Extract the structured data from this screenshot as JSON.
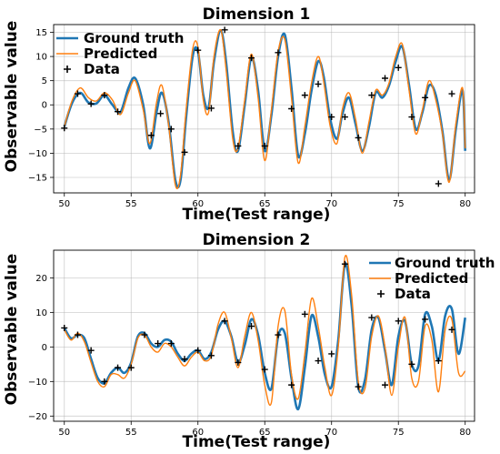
{
  "figure": {
    "ylabel": "Observable value",
    "legend": [
      {
        "label": "Ground truth",
        "color": "#1f77b4",
        "kind": "line"
      },
      {
        "label": "Predicted",
        "color": "#ff7f0e",
        "kind": "line"
      },
      {
        "label": "Data",
        "color": "#000000",
        "kind": "marker"
      }
    ]
  },
  "chart_data": [
    {
      "type": "line",
      "title": "Dimension 1",
      "xlabel": "Time(Test range)",
      "ylabel": "Observable value",
      "xlim": [
        49.2,
        80.7
      ],
      "ylim": [
        -18.2,
        16.6
      ],
      "xticks": [
        50,
        55,
        60,
        65,
        70,
        75,
        80
      ],
      "yticks": [
        -15,
        -10,
        -5,
        0,
        5,
        10,
        15
      ],
      "grid": true,
      "legend_position": "top-left",
      "series": [
        {
          "name": "Ground truth",
          "color": "#1f77b4",
          "x": [
            50,
            50.6,
            51.2,
            51.8,
            52.4,
            53.0,
            53.6,
            54.2,
            54.8,
            55.3,
            55.9,
            56.4,
            56.9,
            57.3,
            57.8,
            58.3,
            58.7,
            59.1,
            59.6,
            60.0,
            60.4,
            60.8,
            61.2,
            61.7,
            62.1,
            62.6,
            63.0,
            63.5,
            64.0,
            64.5,
            65.0,
            65.5,
            66.0,
            66.5,
            67.0,
            67.5,
            68.0,
            68.5,
            69.0,
            69.4,
            69.9,
            70.4,
            70.8,
            71.3,
            71.8,
            72.3,
            72.8,
            73.3,
            73.8,
            74.3,
            74.8,
            75.3,
            75.8,
            76.3,
            76.8,
            77.3,
            77.8,
            78.3,
            78.8,
            79.3,
            79.8,
            80.0
          ],
          "y": [
            -4.5,
            0.5,
            2.5,
            0.5,
            0.3,
            2.0,
            0.0,
            -1.5,
            3.5,
            5.5,
            0.0,
            -9.0,
            -1.5,
            2.5,
            -3.5,
            -15.5,
            -15.5,
            -3.0,
            10.0,
            11.0,
            2.0,
            -0.5,
            9.0,
            15.3,
            9.0,
            -5.5,
            -9.5,
            0.0,
            9.8,
            3.0,
            -9.5,
            -2.0,
            10.0,
            14.5,
            3.5,
            -10.5,
            -6.0,
            3.0,
            9.0,
            6.0,
            -3.0,
            -7.0,
            -2.0,
            1.5,
            -4.0,
            -9.5,
            -4.5,
            2.5,
            1.5,
            4.0,
            9.0,
            12.0,
            4.0,
            -5.0,
            -1.5,
            4.0,
            2.0,
            -5.5,
            -15.5,
            -5.0,
            3.0,
            -9.5
          ]
        },
        {
          "name": "Predicted",
          "color": "#ff7f0e",
          "x": [
            50,
            50.6,
            51.2,
            51.8,
            52.4,
            53.0,
            53.6,
            54.2,
            54.8,
            55.3,
            55.9,
            56.4,
            56.9,
            57.3,
            57.8,
            58.3,
            58.7,
            59.1,
            59.6,
            60.0,
            60.4,
            60.8,
            61.2,
            61.7,
            62.1,
            62.6,
            63.0,
            63.5,
            64.0,
            64.5,
            65.0,
            65.5,
            66.0,
            66.5,
            67.0,
            67.5,
            68.0,
            68.5,
            69.0,
            69.4,
            69.9,
            70.4,
            70.8,
            71.3,
            71.8,
            72.3,
            72.8,
            73.3,
            73.8,
            74.3,
            74.8,
            75.3,
            75.8,
            76.3,
            76.8,
            77.3,
            77.8,
            78.3,
            78.8,
            79.3,
            79.8,
            80.0
          ],
          "y": [
            -4.5,
            1.0,
            3.5,
            1.5,
            0.8,
            2.5,
            1.0,
            -2.0,
            2.5,
            5.0,
            -1.0,
            -8.0,
            0.5,
            4.0,
            -4.0,
            -16.5,
            -14.5,
            -1.5,
            11.5,
            12.0,
            1.0,
            -1.5,
            10.0,
            15.5,
            7.5,
            -7.0,
            -9.0,
            1.0,
            10.5,
            1.5,
            -11.5,
            -1.0,
            11.0,
            13.5,
            1.5,
            -12.0,
            -4.5,
            4.5,
            10.0,
            5.0,
            -4.5,
            -8.0,
            -1.0,
            2.5,
            -3.0,
            -10.0,
            -3.5,
            3.0,
            2.0,
            4.5,
            10.0,
            12.5,
            3.0,
            -6.0,
            -1.0,
            5.0,
            1.0,
            -6.0,
            -16.0,
            -4.0,
            3.5,
            -9.0
          ]
        }
      ],
      "data_points": {
        "name": "Data",
        "x": [
          50,
          51.0,
          52.0,
          53.0,
          54.0,
          56.5,
          57.2,
          58.0,
          59.0,
          60.0,
          61.0,
          62.0,
          63.0,
          64.0,
          65.0,
          66.0,
          67.0,
          68.0,
          69.0,
          70.0,
          71.0,
          72.0,
          73.0,
          74.0,
          75.0,
          76.0,
          77.0,
          78.0,
          79.0
        ],
        "y": [
          -4.8,
          2.3,
          0.2,
          2.0,
          -1.4,
          -6.3,
          -1.8,
          -5.0,
          -9.8,
          11.3,
          -0.7,
          15.5,
          -8.5,
          9.7,
          -8.5,
          10.8,
          -0.8,
          2.0,
          4.3,
          -2.5,
          -2.5,
          -6.8,
          2.0,
          5.5,
          7.7,
          -2.5,
          1.5,
          -16.3,
          2.3
        ]
      }
    },
    {
      "type": "line",
      "title": "Dimension 2",
      "xlabel": "Time(Test range)",
      "ylabel": "Observable value",
      "xlim": [
        49.2,
        80.7
      ],
      "ylim": [
        -21.5,
        28.0
      ],
      "xticks": [
        50,
        55,
        60,
        65,
        70,
        75,
        80
      ],
      "yticks": [
        -20,
        -10,
        0,
        10,
        20
      ],
      "grid": true,
      "legend_position": "top-right",
      "series": [
        {
          "name": "Ground truth",
          "color": "#1f77b4",
          "x": [
            50,
            50.5,
            51.0,
            51.5,
            52.0,
            52.5,
            53.0,
            53.5,
            54.0,
            54.5,
            55.0,
            55.5,
            56.0,
            56.5,
            57.0,
            57.5,
            58.0,
            58.5,
            59.0,
            59.5,
            60.0,
            60.5,
            61.0,
            61.5,
            62.0,
            62.5,
            63.0,
            63.5,
            64.0,
            64.5,
            65.0,
            65.5,
            66.0,
            66.5,
            67.0,
            67.5,
            68.0,
            68.5,
            69.0,
            69.5,
            70.0,
            70.5,
            71.0,
            71.5,
            72.0,
            72.5,
            73.0,
            73.5,
            74.0,
            74.5,
            75.0,
            75.5,
            76.0,
            76.5,
            77.0,
            77.5,
            78.0,
            78.5,
            79.0,
            79.5,
            80.0
          ],
          "y": [
            5.5,
            2.5,
            3.5,
            2.5,
            -3.5,
            -9.0,
            -10.5,
            -7.5,
            -6.0,
            -7.5,
            -4.5,
            3.0,
            4.0,
            1.0,
            0.0,
            2.0,
            1.5,
            -2.0,
            -4.0,
            -2.0,
            -1.0,
            -3.5,
            -1.5,
            5.0,
            7.5,
            3.0,
            -4.5,
            0.5,
            8.0,
            3.5,
            -7.5,
            -12.0,
            3.0,
            4.0,
            -9.0,
            -18.0,
            -6.0,
            9.0,
            3.0,
            -8.0,
            -11.5,
            2.0,
            24.0,
            12.0,
            -11.5,
            -9.5,
            5.0,
            8.5,
            -1.0,
            -11.0,
            3.0,
            7.5,
            -5.0,
            -5.5,
            9.5,
            6.0,
            -4.0,
            9.0,
            11.0,
            -2.0,
            8.5
          ]
        },
        {
          "name": "Predicted",
          "color": "#ff7f0e",
          "x": [
            50,
            50.5,
            51.0,
            51.5,
            52.0,
            52.5,
            53.0,
            53.5,
            54.0,
            54.5,
            55.0,
            55.5,
            56.0,
            56.5,
            57.0,
            57.5,
            58.0,
            58.5,
            59.0,
            59.5,
            60.0,
            60.5,
            61.0,
            61.5,
            62.0,
            62.5,
            63.0,
            63.5,
            64.0,
            64.5,
            65.0,
            65.5,
            66.0,
            66.5,
            67.0,
            67.5,
            68.0,
            68.5,
            69.0,
            69.5,
            70.0,
            70.5,
            71.0,
            71.5,
            72.0,
            72.5,
            73.0,
            73.5,
            74.0,
            74.5,
            75.0,
            75.5,
            76.0,
            76.5,
            77.0,
            77.5,
            78.0,
            78.5,
            79.0,
            79.5,
            80.0
          ],
          "y": [
            5.0,
            2.0,
            4.0,
            1.5,
            -4.5,
            -10.0,
            -11.5,
            -8.0,
            -8.0,
            -9.0,
            -5.0,
            2.5,
            3.5,
            0.0,
            -1.5,
            1.0,
            0.0,
            -3.0,
            -5.5,
            -3.0,
            -1.5,
            -4.0,
            -2.5,
            6.5,
            10.0,
            2.5,
            -6.0,
            3.0,
            10.0,
            2.0,
            -11.0,
            -16.0,
            6.0,
            10.5,
            -8.0,
            -15.0,
            -2.0,
            14.0,
            6.0,
            -6.0,
            -14.0,
            0.0,
            26.0,
            15.0,
            -10.0,
            -12.0,
            3.0,
            9.0,
            0.0,
            -14.0,
            0.0,
            8.5,
            -9.0,
            -10.0,
            6.0,
            2.0,
            -13.0,
            5.0,
            8.0,
            -7.5,
            -7.0
          ]
        }
      ],
      "data_points": {
        "name": "Data",
        "x": [
          50,
          51.0,
          52.0,
          53.0,
          54.0,
          55.0,
          56.0,
          57.0,
          58.0,
          59.0,
          60.0,
          61.0,
          62.0,
          63.0,
          64.0,
          65.0,
          66.0,
          67.0,
          68.0,
          69.0,
          70.0,
          71.0,
          72.0,
          73.0,
          74.0,
          75.0,
          76.0,
          77.0,
          78.0,
          79.0
        ],
        "y": [
          5.5,
          3.5,
          -1.0,
          -10.0,
          -6.0,
          -6.0,
          3.5,
          1.0,
          1.0,
          -3.5,
          -1.0,
          -2.5,
          7.5,
          -4.5,
          6.0,
          -6.5,
          3.5,
          -11.0,
          9.5,
          -4.0,
          -2.0,
          24.0,
          -11.5,
          8.5,
          -11.0,
          7.5,
          -5.0,
          8.0,
          -4.0,
          5.0
        ]
      }
    }
  ]
}
